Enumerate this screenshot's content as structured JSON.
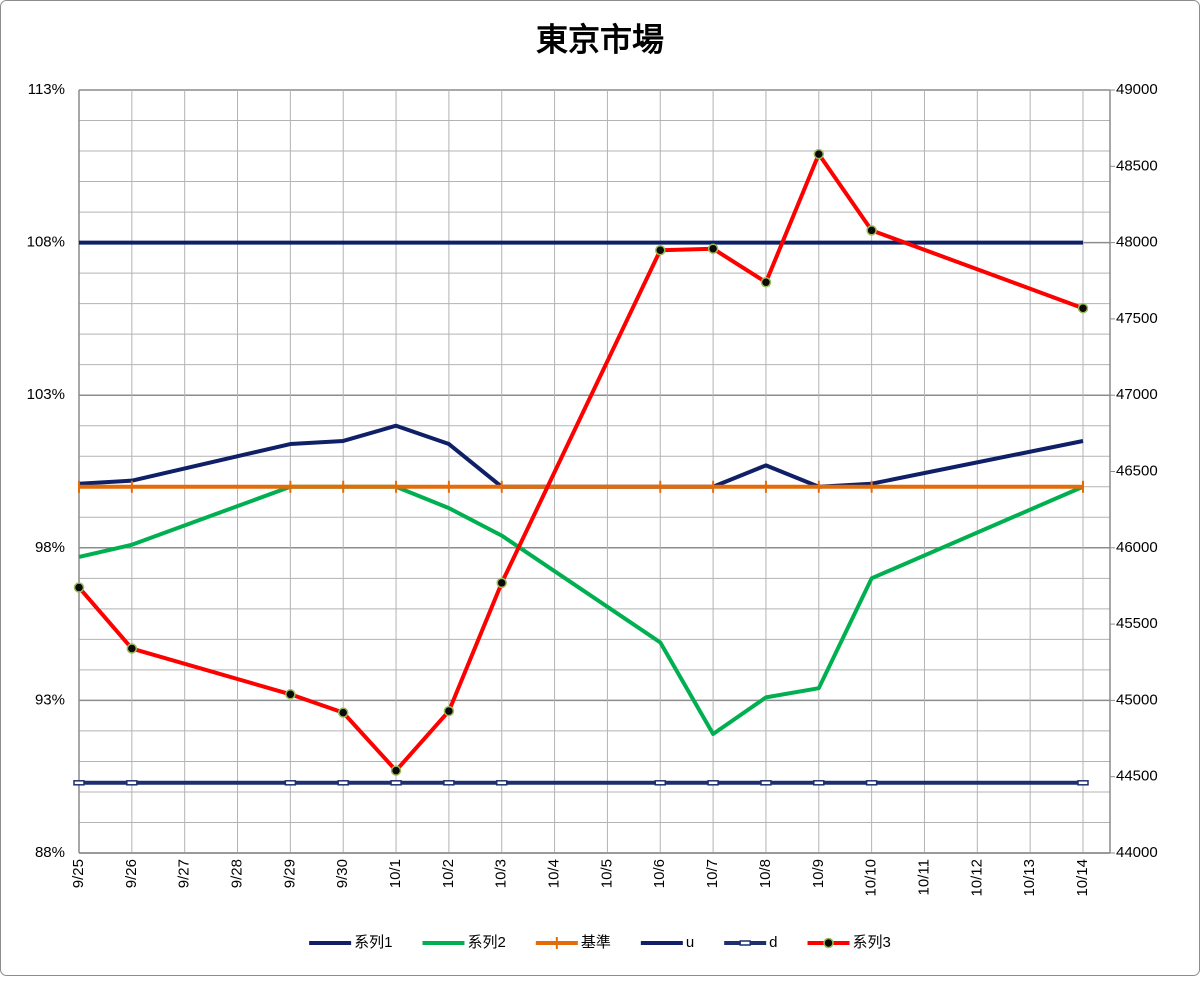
{
  "chart_data": {
    "type": "line",
    "title": "東京市場",
    "categories": [
      "9/25",
      "9/26",
      "9/27",
      "9/28",
      "9/29",
      "9/30",
      "10/1",
      "10/2",
      "10/3",
      "10/4",
      "10/5",
      "10/6",
      "10/7",
      "10/8",
      "10/9",
      "10/10",
      "10/11",
      "10/12",
      "10/13",
      "10/14"
    ],
    "ylim": [
      88,
      113
    ],
    "yticks": [
      {
        "value": 88,
        "label": "88%"
      },
      {
        "value": 93,
        "label": "93%"
      },
      {
        "value": 98,
        "label": "98%"
      },
      {
        "value": 103,
        "label": "103%"
      },
      {
        "value": 108,
        "label": "108%"
      },
      {
        "value": 113,
        "label": "113%"
      }
    ],
    "minor_yticks": [
      89,
      90,
      91,
      92,
      94,
      95,
      96,
      97,
      99,
      100,
      101,
      102,
      104,
      105,
      106,
      107,
      109,
      110,
      111,
      112
    ],
    "y2lim": [
      44000,
      49000
    ],
    "y2ticks": [
      44000,
      44500,
      45000,
      45500,
      46000,
      46500,
      47000,
      47500,
      48000,
      48500,
      49000
    ],
    "grid": true,
    "legend": "bottom",
    "series": [
      {
        "name": "系列1",
        "color": "#0f2068",
        "marker": "none",
        "x": [
          "9/25",
          "9/26",
          "9/29",
          "9/30",
          "10/1",
          "10/2",
          "10/3",
          "10/6",
          "10/7",
          "10/8",
          "10/9",
          "10/10",
          "10/14"
        ],
        "values": [
          100.1,
          100.2,
          101.4,
          101.5,
          102.0,
          101.4,
          100,
          100,
          100,
          100.7,
          100,
          100.1,
          101.5
        ]
      },
      {
        "name": "系列2",
        "color": "#00b050",
        "marker": "none",
        "x": [
          "9/25",
          "9/26",
          "9/29",
          "9/30",
          "10/1",
          "10/2",
          "10/3",
          "10/6",
          "10/7",
          "10/8",
          "10/9",
          "10/10",
          "10/14"
        ],
        "values": [
          97.7,
          98.1,
          100,
          100,
          100,
          99.3,
          98.4,
          94.9,
          91.9,
          93.1,
          93.4,
          97.0,
          100
        ]
      },
      {
        "name": "基準",
        "color": "#e36c09",
        "marker": "plus",
        "x": [
          "9/25",
          "9/26",
          "9/29",
          "9/30",
          "10/1",
          "10/2",
          "10/3",
          "10/6",
          "10/7",
          "10/8",
          "10/9",
          "10/10",
          "10/14"
        ],
        "values": [
          100,
          100,
          100,
          100,
          100,
          100,
          100,
          100,
          100,
          100,
          100,
          100,
          100
        ]
      },
      {
        "name": "u",
        "color": "#0f2068",
        "marker": "none",
        "x": [
          "9/25",
          "9/26",
          "9/29",
          "9/30",
          "10/1",
          "10/2",
          "10/3",
          "10/6",
          "10/7",
          "10/8",
          "10/9",
          "10/10",
          "10/14"
        ],
        "values": [
          108,
          108,
          108,
          108,
          108,
          108,
          108,
          108,
          108,
          108,
          108,
          108,
          108
        ]
      },
      {
        "name": "d",
        "color": "#1f2f6e",
        "marker": "dash",
        "x": [
          "9/25",
          "9/26",
          "9/29",
          "9/30",
          "10/1",
          "10/2",
          "10/3",
          "10/6",
          "10/7",
          "10/8",
          "10/9",
          "10/10",
          "10/14"
        ],
        "values": [
          90.3,
          90.3,
          90.3,
          90.3,
          90.3,
          90.3,
          90.3,
          90.3,
          90.3,
          90.3,
          90.3,
          90.3,
          90.3
        ]
      },
      {
        "name": "系列3",
        "color": "#ff0000",
        "marker": "circle",
        "axis": "y2",
        "x": [
          "9/25",
          "9/26",
          "9/29",
          "9/30",
          "10/1",
          "10/2",
          "10/3",
          "10/6",
          "10/7",
          "10/8",
          "10/9",
          "10/10",
          "10/14"
        ],
        "values": [
          45740,
          45340,
          45040,
          44920,
          44540,
          44930,
          45770,
          47950,
          47960,
          47740,
          48580,
          48080,
          47570
        ]
      }
    ]
  }
}
